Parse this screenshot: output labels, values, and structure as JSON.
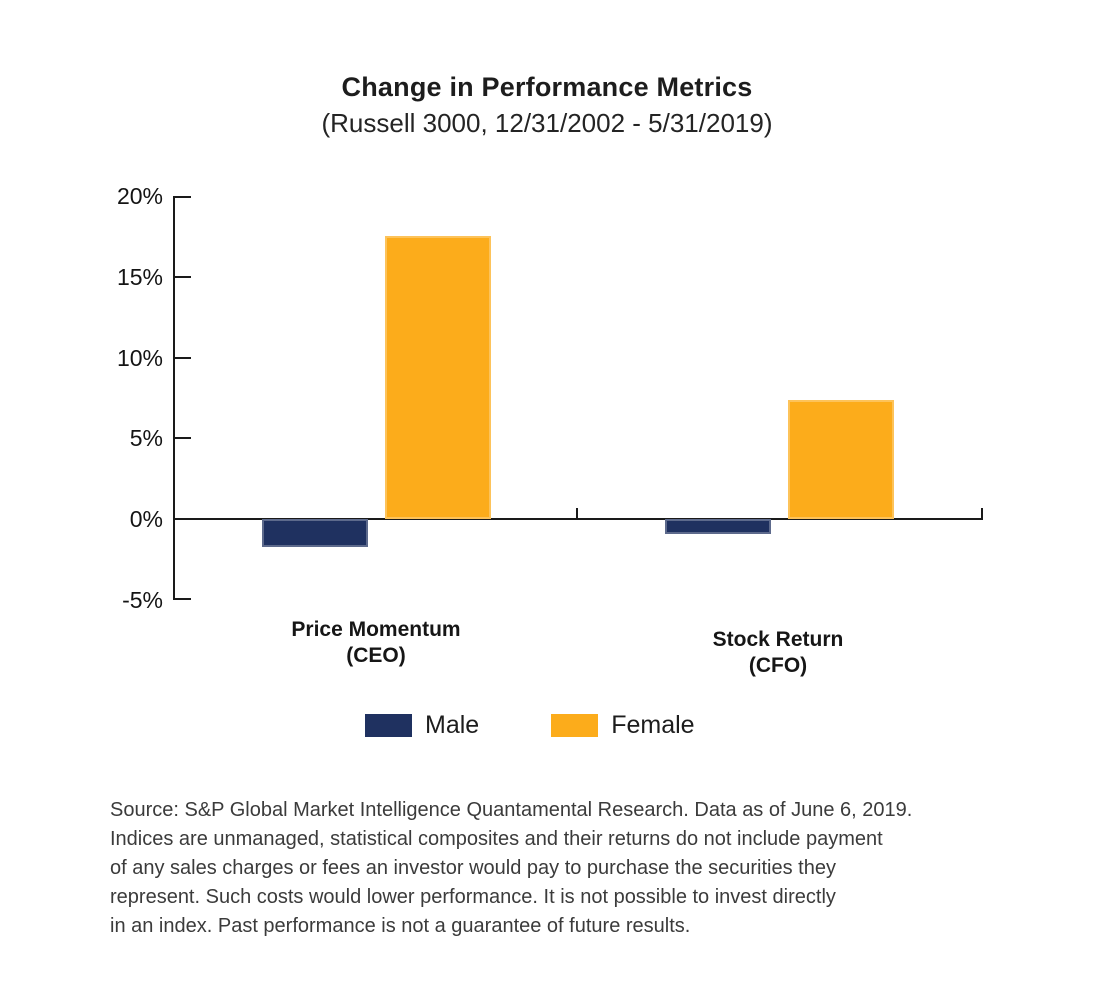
{
  "chart": {
    "title": "Change in Performance Metrics",
    "subtitle": "(Russell 3000, 12/31/2002 - 5/31/2019)"
  },
  "chart_data": {
    "type": "bar",
    "title": "Change in Performance Metrics",
    "subtitle": "(Russell 3000, 12/31/2002 - 5/31/2019)",
    "categories": [
      "Price Momentum (CEO)",
      "Stock Return (CFO)"
    ],
    "category_lines": [
      [
        "Price Momentum",
        "(CEO)"
      ],
      [
        "Stock Return",
        "(CFO)"
      ]
    ],
    "series": [
      {
        "name": "Male",
        "color": "#1f3160",
        "values": [
          -1.7,
          -0.9
        ]
      },
      {
        "name": "Female",
        "color": "#fcac1b",
        "values": [
          17.5,
          7.4
        ]
      }
    ],
    "xlabel": "",
    "ylabel": "",
    "ylim": [
      -5,
      20
    ],
    "yticks": [
      20,
      15,
      10,
      5,
      0,
      -5
    ],
    "ytick_suffix": "%",
    "grid": false,
    "legend_position": "bottom"
  },
  "legend": {
    "items": [
      {
        "label": "Male",
        "color": "#1f3160"
      },
      {
        "label": "Female",
        "color": "#fcac1b"
      }
    ]
  },
  "footnote": {
    "lines": [
      "Source: S&P Global Market Intelligence Quantamental Research. Data as of June 6, 2019.",
      "Indices are unmanaged, statistical composites and their returns do not include payment",
      "of any sales charges or fees an investor would pay to purchase the securities they",
      "represent. Such costs would lower performance. It is not possible to invest directly",
      "in an index. Past performance is not a guarantee of future results."
    ]
  }
}
